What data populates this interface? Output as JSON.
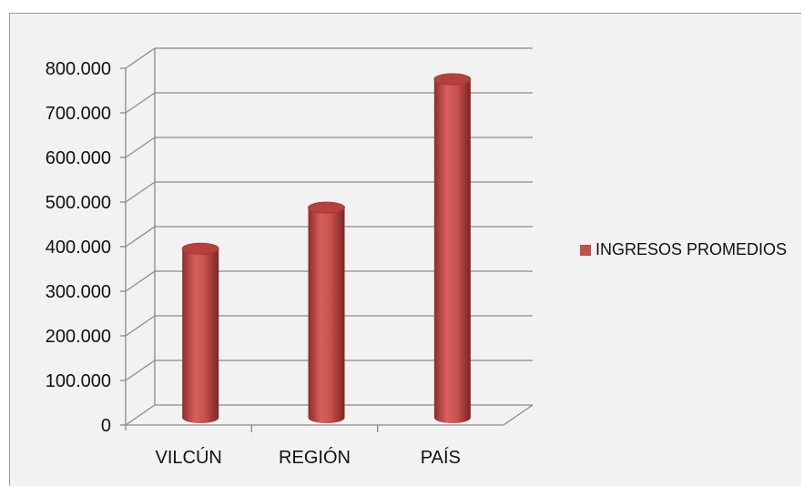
{
  "chart_data": {
    "type": "bar",
    "style": "3d-cylinder",
    "categories": [
      "VILCÚN",
      "REGIÓN",
      "PAÍS"
    ],
    "series": [
      {
        "name": "INGRESOS PROMEDIOS",
        "values": [
          375000,
          467000,
          755000
        ],
        "color": "#c0504d"
      }
    ],
    "ylim": [
      0,
      800000
    ],
    "yticks": [
      "0",
      "100.000",
      "200.000",
      "300.000",
      "400.000",
      "500.000",
      "600.000",
      "700.000",
      "800.000"
    ],
    "grid": true,
    "legend": "right"
  }
}
